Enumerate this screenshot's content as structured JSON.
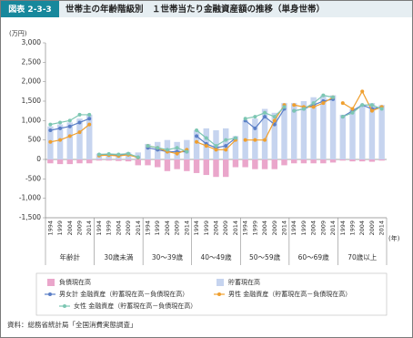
{
  "chart_data": {
    "type": "bar",
    "badge": "図表 2-3-3",
    "title": "世帯主の年齢階級別　１世帯当たり金融資産額の推移（単身世帯）",
    "y_unit": "(万円)",
    "x_unit": "(年)",
    "source": "資料：総務省統計局「全国消費実態調査」",
    "groups": [
      "年齢計",
      "30歳未満",
      "30～39歳",
      "40～49歳",
      "50～59歳",
      "60～69歳",
      "70歳以上"
    ],
    "categories": [
      "1994",
      "1999",
      "2004",
      "2009",
      "2014",
      "1994",
      "1999",
      "2004",
      "2009",
      "2014",
      "1994",
      "1999",
      "2004",
      "2009",
      "2014",
      "1994",
      "1999",
      "2004",
      "2009",
      "2014",
      "1994",
      "1999",
      "2004",
      "2009",
      "2014",
      "1994",
      "1999",
      "2004",
      "2009",
      "2014",
      "1994",
      "1999",
      "2004",
      "2009",
      "2014"
    ],
    "ylim": [
      -1500,
      3000
    ],
    "yticks": [
      {
        "value": 3000,
        "label": "3,000"
      },
      {
        "value": 2500,
        "label": "2,500"
      },
      {
        "value": 2000,
        "label": "2,000"
      },
      {
        "value": 1500,
        "label": "1,500"
      },
      {
        "value": 1000,
        "label": "1,000"
      },
      500,
      0,
      -500,
      {
        "value": -1000,
        "label": "-1,000"
      },
      {
        "value": -1500,
        "label": "-1,500"
      }
    ],
    "series": [
      {
        "name": "負債現在高",
        "type": "bar",
        "color": "#eaa6cb",
        "values": [
          -100,
          -120,
          -120,
          -100,
          -100,
          -30,
          -30,
          -40,
          -50,
          -150,
          -150,
          -200,
          -300,
          -250,
          -300,
          -350,
          -400,
          -450,
          -450,
          -200,
          -200,
          -250,
          -250,
          -250,
          -150,
          -100,
          -100,
          -100,
          -100,
          -80,
          -30,
          -50,
          -50,
          -60,
          -30
        ]
      },
      {
        "name": "貯蓄現在高",
        "type": "bar",
        "color": "#c6d4ef",
        "values": [
          850,
          900,
          950,
          1050,
          1150,
          150,
          150,
          150,
          180,
          180,
          400,
          450,
          500,
          450,
          500,
          750,
          800,
          750,
          800,
          600,
          1000,
          1050,
          1300,
          1200,
          1450,
          1450,
          1500,
          1600,
          1650,
          1650,
          1150,
          1300,
          1400,
          1450,
          1400
        ]
      },
      {
        "name": "男女計 金融資産（貯蓄現在高－負債現在高）",
        "type": "line",
        "color": "#5a7ec6",
        "values": [
          750,
          800,
          850,
          950,
          1050,
          120,
          120,
          110,
          130,
          50,
          300,
          250,
          200,
          200,
          200,
          600,
          400,
          300,
          350,
          550,
          1000,
          800,
          1100,
          900,
          1300,
          1250,
          1300,
          1400,
          1500,
          1550,
          1100,
          1250,
          1400,
          1300,
          1350
        ]
      },
      {
        "name": "男性 金融資産（貯蓄現在高－負債現在高）",
        "type": "line",
        "color": "#ef9f2e",
        "values": [
          450,
          500,
          600,
          700,
          900,
          100,
          110,
          90,
          120,
          50,
          350,
          300,
          200,
          150,
          250,
          450,
          350,
          250,
          250,
          500,
          500,
          500,
          500,
          1000,
          1400,
          1400,
          1350,
          1350,
          1450,
          1600,
          1450,
          1300,
          1750,
          1250,
          1350
        ]
      },
      {
        "name": "女性 金融資産（貯蓄現在高－負債現在高）",
        "type": "line",
        "color": "#7cc6b2",
        "values": [
          900,
          950,
          1000,
          1150,
          1150,
          130,
          140,
          130,
          150,
          60,
          350,
          300,
          250,
          300,
          200,
          750,
          550,
          350,
          500,
          550,
          1050,
          1100,
          1200,
          1100,
          1350,
          1250,
          1300,
          1450,
          1650,
          1600,
          1100,
          1200,
          1400,
          1400,
          1300
        ]
      }
    ]
  }
}
